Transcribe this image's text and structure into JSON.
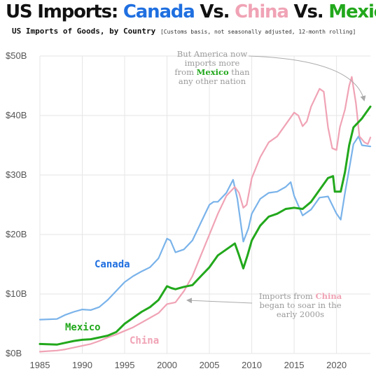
{
  "header": {
    "title_parts": [
      {
        "text": "US Imports: ",
        "color": "#111111"
      },
      {
        "text": "Canada",
        "color": "#1f6fe0"
      },
      {
        "text": " Vs. ",
        "color": "#111111"
      },
      {
        "text": "China",
        "color": "#f0a3b5"
      },
      {
        "text": " Vs. ",
        "color": "#111111"
      },
      {
        "text": "Mexico",
        "color": "#22a81c"
      }
    ],
    "subtitle": "US Imports of Goods, by Country",
    "subtitle_note": "[Customs basis, not seasonally adjusted, 12-month rolling]"
  },
  "annotations": {
    "mexico": {
      "lines": [
        [
          {
            "text": "But America now"
          }
        ],
        [
          {
            "text": "imports more"
          }
        ],
        [
          {
            "text": "from "
          },
          {
            "text": "Mexico",
            "color": "#22a81c",
            "bold": true
          },
          {
            "text": " than"
          }
        ],
        [
          {
            "text": "any other nation"
          }
        ]
      ]
    },
    "china": {
      "lines": [
        [
          {
            "text": "Imports from "
          },
          {
            "text": "China",
            "color": "#f0a3b5",
            "bold": true
          }
        ],
        [
          {
            "text": "began to soar in the"
          }
        ],
        [
          {
            "text": "early 2000s"
          }
        ]
      ]
    }
  },
  "chart_data": {
    "type": "line",
    "title": "US Imports: Canada Vs. China Vs. Mexico",
    "subtitle": "US Imports of Goods, by Country",
    "xlim": [
      1985,
      2024
    ],
    "ylim": [
      0,
      50
    ],
    "x_ticks": [
      1985,
      1990,
      1995,
      2000,
      2005,
      2010,
      2015,
      2020
    ],
    "y_ticks": [
      0,
      10,
      20,
      30,
      40,
      50
    ],
    "y_tick_labels": [
      "$0B",
      "$10B",
      "$20B",
      "$30B",
      "$40B",
      "$50B"
    ],
    "grid": true,
    "series": [
      {
        "name": "Canada",
        "color": "#7ab3ea",
        "label_color": "#1f6fe0",
        "points": [
          [
            1985,
            5.7
          ],
          [
            1987,
            5.8
          ],
          [
            1988,
            6.5
          ],
          [
            1989,
            7.0
          ],
          [
            1990,
            7.4
          ],
          [
            1991,
            7.3
          ],
          [
            1992,
            7.8
          ],
          [
            1993,
            9.0
          ],
          [
            1994,
            10.5
          ],
          [
            1995,
            12.0
          ],
          [
            1996,
            13.0
          ],
          [
            1997,
            13.8
          ],
          [
            1998,
            14.5
          ],
          [
            1999,
            16.0
          ],
          [
            2000,
            19.3
          ],
          [
            2000.4,
            19.0
          ],
          [
            2001,
            17.0
          ],
          [
            2002,
            17.5
          ],
          [
            2003,
            19.0
          ],
          [
            2004,
            22.0
          ],
          [
            2005,
            25.0
          ],
          [
            2005.5,
            25.5
          ],
          [
            2006,
            25.5
          ],
          [
            2007,
            27.0
          ],
          [
            2007.8,
            29.2
          ],
          [
            2008.3,
            26.0
          ],
          [
            2009,
            18.8
          ],
          [
            2009.6,
            21.0
          ],
          [
            2010,
            23.5
          ],
          [
            2011,
            26.0
          ],
          [
            2012,
            27.0
          ],
          [
            2013,
            27.2
          ],
          [
            2014,
            28.0
          ],
          [
            2014.6,
            28.8
          ],
          [
            2015,
            26.5
          ],
          [
            2016,
            23.2
          ],
          [
            2017,
            24.2
          ],
          [
            2018,
            26.2
          ],
          [
            2019,
            26.4
          ],
          [
            2020,
            23.5
          ],
          [
            2020.5,
            22.5
          ],
          [
            2021,
            27.0
          ],
          [
            2021.5,
            31.0
          ],
          [
            2022,
            35.2
          ],
          [
            2022.6,
            36.5
          ],
          [
            2023,
            35.0
          ],
          [
            2024,
            34.8
          ]
        ]
      },
      {
        "name": "China",
        "color": "#f0a3b5",
        "label_color": "#f0a3b5",
        "points": [
          [
            1985,
            0.3
          ],
          [
            1987,
            0.5
          ],
          [
            1988,
            0.7
          ],
          [
            1990,
            1.3
          ],
          [
            1991,
            1.6
          ],
          [
            1992,
            2.1
          ],
          [
            1993,
            2.7
          ],
          [
            1994,
            3.2
          ],
          [
            1995,
            3.8
          ],
          [
            1996,
            4.4
          ],
          [
            1997,
            5.2
          ],
          [
            1998,
            6.0
          ],
          [
            1999,
            6.8
          ],
          [
            2000,
            8.3
          ],
          [
            2001,
            8.6
          ],
          [
            2002,
            10.5
          ],
          [
            2003,
            13.0
          ],
          [
            2004,
            16.5
          ],
          [
            2005,
            20.0
          ],
          [
            2006,
            23.5
          ],
          [
            2007,
            26.5
          ],
          [
            2008,
            28.0
          ],
          [
            2008.5,
            27.0
          ],
          [
            2009,
            24.5
          ],
          [
            2009.4,
            25.0
          ],
          [
            2010,
            29.5
          ],
          [
            2011,
            33.0
          ],
          [
            2012,
            35.5
          ],
          [
            2013,
            36.5
          ],
          [
            2014,
            38.5
          ],
          [
            2015,
            40.5
          ],
          [
            2015.5,
            40.0
          ],
          [
            2016,
            38.2
          ],
          [
            2016.5,
            39.0
          ],
          [
            2017,
            41.5
          ],
          [
            2018,
            44.5
          ],
          [
            2018.5,
            44.0
          ],
          [
            2019,
            38.0
          ],
          [
            2019.5,
            34.5
          ],
          [
            2020,
            34.2
          ],
          [
            2020.4,
            38.0
          ],
          [
            2021,
            41.0
          ],
          [
            2021.5,
            45.0
          ],
          [
            2021.8,
            46.5
          ],
          [
            2022.3,
            42.0
          ],
          [
            2022.7,
            36.5
          ],
          [
            2023.3,
            35.5
          ],
          [
            2023.7,
            35.2
          ],
          [
            2024,
            36.3
          ]
        ]
      },
      {
        "name": "Mexico",
        "color": "#22a81c",
        "label_color": "#22a81c",
        "points": [
          [
            1985,
            1.6
          ],
          [
            1987,
            1.5
          ],
          [
            1988,
            1.8
          ],
          [
            1989,
            2.1
          ],
          [
            1990,
            2.3
          ],
          [
            1991,
            2.4
          ],
          [
            1992,
            2.7
          ],
          [
            1993,
            3.0
          ],
          [
            1994,
            3.6
          ],
          [
            1995,
            5.0
          ],
          [
            1996,
            6.0
          ],
          [
            1997,
            7.0
          ],
          [
            1998,
            7.8
          ],
          [
            1999,
            9.0
          ],
          [
            2000,
            11.3
          ],
          [
            2000.5,
            11.0
          ],
          [
            2001,
            10.8
          ],
          [
            2002,
            11.2
          ],
          [
            2003,
            11.5
          ],
          [
            2004,
            13.0
          ],
          [
            2005,
            14.5
          ],
          [
            2006,
            16.5
          ],
          [
            2007,
            17.5
          ],
          [
            2008,
            18.5
          ],
          [
            2008.5,
            16.5
          ],
          [
            2009,
            14.3
          ],
          [
            2009.5,
            16.5
          ],
          [
            2010,
            19.0
          ],
          [
            2011,
            21.5
          ],
          [
            2012,
            23.0
          ],
          [
            2013,
            23.5
          ],
          [
            2014,
            24.3
          ],
          [
            2015,
            24.5
          ],
          [
            2016,
            24.3
          ],
          [
            2017,
            25.5
          ],
          [
            2018,
            27.5
          ],
          [
            2019,
            29.5
          ],
          [
            2019.6,
            29.8
          ],
          [
            2019.8,
            27.2
          ],
          [
            2020.5,
            27.2
          ],
          [
            2021,
            30.5
          ],
          [
            2021.5,
            35.0
          ],
          [
            2022,
            38.0
          ],
          [
            2023,
            39.5
          ],
          [
            2024,
            41.5
          ]
        ]
      }
    ],
    "series_labels": [
      {
        "text": "Canada",
        "series": "Canada"
      },
      {
        "text": "China",
        "series": "China"
      },
      {
        "text": "Mexico",
        "series": "Mexico"
      }
    ]
  }
}
